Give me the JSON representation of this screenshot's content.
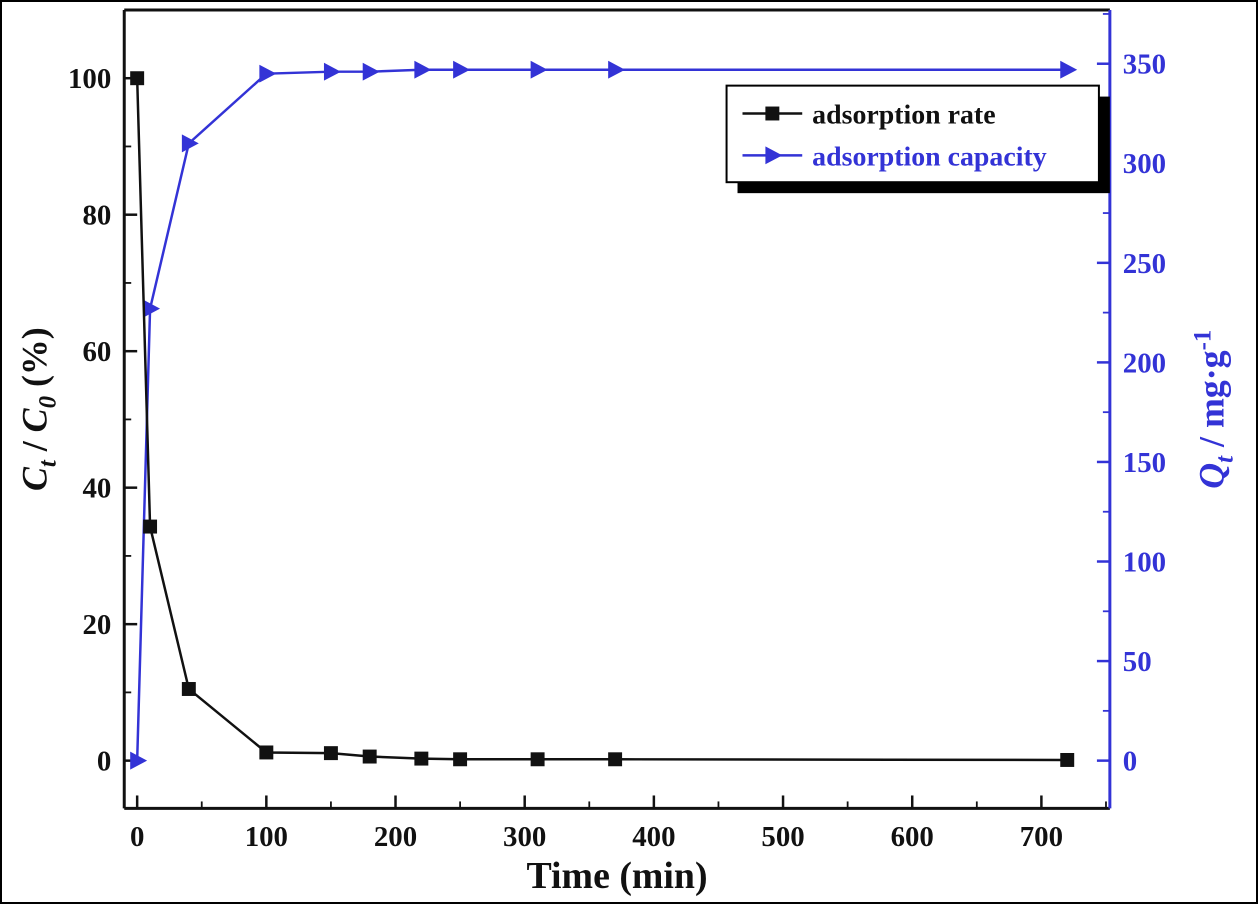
{
  "figure": {
    "name": "adsorption-kinetics-chart"
  },
  "chart_data": {
    "type": "line",
    "x": [
      0,
      10,
      40,
      100,
      150,
      180,
      220,
      250,
      310,
      370,
      720
    ],
    "series": [
      {
        "name": "adsorption rate",
        "axis": "left",
        "color": "#111111",
        "marker": "square",
        "values": [
          100,
          34.3,
          10.5,
          1.2,
          1.1,
          0.6,
          0.3,
          0.2,
          0.2,
          0.2,
          0.1
        ]
      },
      {
        "name": "adsorption capacity",
        "axis": "right",
        "color": "#3333d6",
        "marker": "triangle-right",
        "values": [
          0,
          227,
          310,
          345,
          346,
          346,
          347,
          347,
          347,
          347,
          347
        ]
      }
    ],
    "xlabel": "Time (min)",
    "x_ticks": [
      0,
      100,
      200,
      300,
      400,
      500,
      600,
      700
    ],
    "x_minor_step": 50,
    "xlim": [
      -10,
      753
    ],
    "left_axis": {
      "label": {
        "sym1": "C",
        "sub1": "t",
        "sep": " / ",
        "sym2": "C",
        "sub2": "0",
        "suffix": " (%)"
      },
      "ticks": [
        0,
        20,
        40,
        60,
        80,
        100
      ],
      "minor_step": 10,
      "lim": [
        -7,
        110
      ],
      "color": "#111111"
    },
    "right_axis": {
      "label": {
        "sym": "Q",
        "sub": "t",
        "sep": " / mg·g",
        "sup": "-1"
      },
      "ticks": [
        0,
        50,
        100,
        150,
        200,
        250,
        300,
        350
      ],
      "minor_step": 25,
      "lim": [
        -24,
        377
      ],
      "color": "#3333d6"
    },
    "legend": {
      "position": "upper-right",
      "entries": [
        {
          "label": "adsorption rate",
          "color": "#111111",
          "marker": "square"
        },
        {
          "label": "adsorption capacity",
          "color": "#3333d6",
          "marker": "triangle-right"
        }
      ]
    },
    "grid": false,
    "background": "#ffffff"
  }
}
